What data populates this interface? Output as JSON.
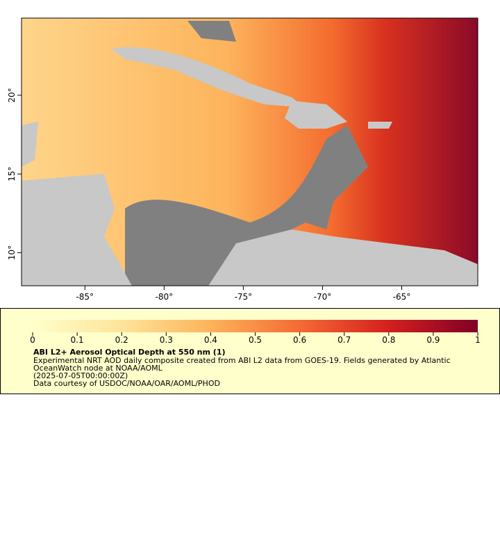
{
  "map": {
    "xlim": [
      -89,
      -60.2
    ],
    "ylim": [
      7.9,
      24.9
    ],
    "xticks": [
      {
        "value": -85,
        "label": "-85°"
      },
      {
        "value": -80,
        "label": "-80°"
      },
      {
        "value": -75,
        "label": "-75°"
      },
      {
        "value": -70,
        "label": "-70°"
      },
      {
        "value": -65,
        "label": "-65°"
      }
    ],
    "yticks": [
      {
        "value": 10,
        "label": "10°"
      },
      {
        "value": 15,
        "label": "15°"
      },
      {
        "value": 20,
        "label": "20°"
      }
    ]
  },
  "colorbar": {
    "lim": [
      0,
      1
    ],
    "ticks": [
      0,
      0.1,
      0.2,
      0.3,
      0.4,
      0.5,
      0.6,
      0.7,
      0.8,
      0.9,
      1
    ]
  },
  "legend": {
    "title": "ABI L2+ Aerosol Optical Depth at 550 nm (1)",
    "lines": [
      "Experimental NRT AOD daily composite created from ABI L2 data from GOES-19. Fields generated by Atlantic",
      "OceanWatch node at NOAA/AOML",
      "(2025-07-05T00:00:00Z)",
      "Data courtesy of USDOC/NOAA/OAR/AOML/PHOD"
    ]
  }
}
